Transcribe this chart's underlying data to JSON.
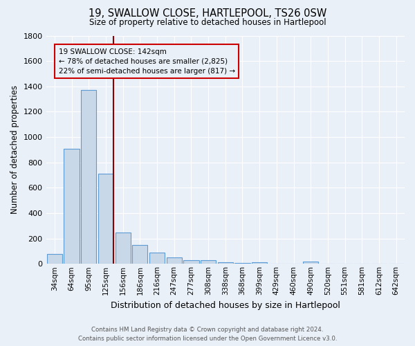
{
  "title": "19, SWALLOW CLOSE, HARTLEPOOL, TS26 0SW",
  "subtitle": "Size of property relative to detached houses in Hartlepool",
  "xlabel": "Distribution of detached houses by size in Hartlepool",
  "ylabel": "Number of detached properties",
  "footer_line1": "Contains HM Land Registry data © Crown copyright and database right 2024.",
  "footer_line2": "Contains public sector information licensed under the Open Government Licence v3.0.",
  "categories": [
    "34sqm",
    "64sqm",
    "95sqm",
    "125sqm",
    "156sqm",
    "186sqm",
    "216sqm",
    "247sqm",
    "277sqm",
    "308sqm",
    "338sqm",
    "368sqm",
    "399sqm",
    "429sqm",
    "460sqm",
    "490sqm",
    "520sqm",
    "551sqm",
    "581sqm",
    "612sqm",
    "642sqm"
  ],
  "values": [
    80,
    910,
    1370,
    710,
    245,
    148,
    88,
    52,
    28,
    30,
    14,
    7,
    12,
    0,
    0,
    18,
    0,
    0,
    0,
    0,
    0
  ],
  "bar_color": "#c8d8e8",
  "bar_edge_color": "#5b9bd5",
  "bg_color": "#eaf0f8",
  "grid_color": "#ffffff",
  "annotation_line1": "19 SWALLOW CLOSE: 142sqm",
  "annotation_line2": "← 78% of detached houses are smaller (2,825)",
  "annotation_line3": "22% of semi-detached houses are larger (817) →",
  "annotation_box_edge": "#cc0000",
  "vline_color": "#8b0000",
  "vline_x": 3.45,
  "ylim": [
    0,
    1800
  ],
  "yticks": [
    0,
    200,
    400,
    600,
    800,
    1000,
    1200,
    1400,
    1600,
    1800
  ]
}
